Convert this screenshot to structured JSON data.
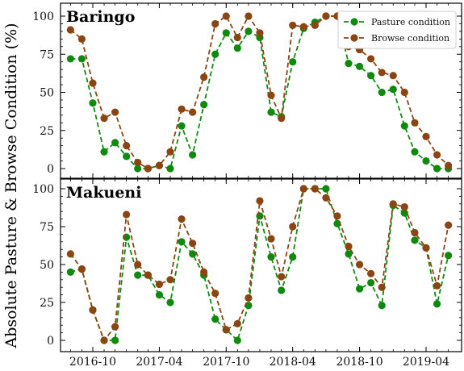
{
  "colors": {
    "pasture": "#0f8a0f",
    "browse": "#8b4513"
  },
  "chart_data": {
    "type": "line",
    "ylabel": "Absolute Pasture & Browse Condition (%)",
    "x_ticks": [
      "2016-10",
      "2017-04",
      "2017-10",
      "2018-04",
      "2018-10",
      "2019-04"
    ],
    "ylim": [
      0,
      100
    ],
    "y_ticks": [
      "0",
      "25",
      "50",
      "75",
      "100"
    ],
    "legend": {
      "placement": "top-right",
      "entries": [
        "Pasture condition",
        "Browse condition"
      ]
    },
    "panels": [
      {
        "title": "Baringo",
        "x": [
          "2016-08-01",
          "2016-08-16",
          "2016-09-01",
          "2016-09-16",
          "2016-10-01",
          "2016-10-16",
          "2016-11-01",
          "2016-11-16",
          "2016-12-01",
          "2016-12-16",
          "2017-01-01",
          "2017-01-16",
          "2017-02-01",
          "2017-02-16",
          "2017-03-01",
          "2017-03-16",
          "2017-04-01",
          "2017-04-16",
          "2017-05-01",
          "2017-05-16",
          "2017-06-01",
          "2017-06-16",
          "2017-07-01",
          "2017-07-16",
          "2017-08-01",
          "2017-08-16",
          "2017-09-01",
          "2017-09-16",
          "2017-10-01",
          "2017-10-16",
          "2017-11-01",
          "2017-11-16",
          "2017-12-01",
          "2017-12-16",
          "2018-01-01",
          "2018-01-16",
          "2018-02-01",
          "2018-02-16",
          "2018-03-01",
          "2018-03-16",
          "2018-04-01",
          "2018-04-16",
          "2018-05-01",
          "2018-05-16",
          "2018-06-01",
          "2018-06-16",
          "2018-07-01",
          "2018-07-16",
          "2018-08-01",
          "2018-08-16",
          "2018-09-01",
          "2018-09-16",
          "2018-10-01",
          "2018-10-16",
          "2018-11-01",
          "2018-11-16",
          "2018-12-01",
          "2018-12-16",
          "2019-01-01",
          "2019-01-16",
          "2019-02-01",
          "2019-02-16",
          "2019-03-01",
          "2019-03-16",
          "2019-04-01",
          "2019-04-16",
          "2019-05-01",
          "2019-05-16",
          "2019-06-01"
        ],
        "x_points": [
          "2016-08-01",
          "2016-09-01",
          "2016-10-01",
          "2016-11-01",
          "2016-12-01",
          "2017-01-01",
          "2017-02-01",
          "2017-03-01",
          "2017-04-01",
          "2017-05-01",
          "2017-06-01",
          "2017-07-01",
          "2017-08-01",
          "2017-09-01",
          "2017-10-01",
          "2017-11-01",
          "2017-12-01",
          "2018-01-01",
          "2018-02-01",
          "2018-03-01",
          "2018-04-01",
          "2018-05-01",
          "2018-06-01",
          "2018-07-01",
          "2018-08-01",
          "2018-09-01",
          "2018-10-01",
          "2018-11-01",
          "2018-12-01",
          "2019-01-01",
          "2019-02-01",
          "2019-03-01",
          "2019-04-01",
          "2019-05-01",
          "2019-06-01"
        ],
        "series": [
          {
            "name": "Pasture condition",
            "values": [
              72,
              72,
              43,
              11,
              17,
              8,
              0,
              0,
              2,
              0,
              28,
              9,
              42,
              75,
              89,
              79,
              90,
              86,
              37,
              34,
              70,
              92,
              96,
              100,
              100,
              69,
              67,
              61,
              50,
              52,
              28,
              11,
              5,
              0,
              0
            ]
          },
          {
            "name": "Browse condition",
            "values": [
              91,
              85,
              56,
              33,
              37,
              15,
              4,
              0,
              2,
              11,
              39,
              37,
              60,
              95,
              100,
              86,
              100,
              89,
              48,
              33,
              94,
              93,
              94,
              100,
              100,
              80,
              78,
              72,
              63,
              61,
              50,
              30,
              21,
              9,
              2
            ]
          }
        ]
      },
      {
        "title": "Makueni",
        "x_points": [
          "2016-08-01",
          "2016-09-01",
          "2016-10-01",
          "2016-11-01",
          "2016-12-01",
          "2017-01-01",
          "2017-02-01",
          "2017-03-01",
          "2017-04-01",
          "2017-05-01",
          "2017-06-01",
          "2017-07-01",
          "2017-08-01",
          "2017-09-01",
          "2017-10-01",
          "2017-11-01",
          "2017-12-01",
          "2018-01-01",
          "2018-02-01",
          "2018-03-01",
          "2018-04-01",
          "2018-05-01",
          "2018-06-01",
          "2018-07-01",
          "2018-08-01",
          "2018-09-01",
          "2018-10-01",
          "2018-11-01",
          "2018-12-01",
          "2019-01-01",
          "2019-02-01",
          "2019-03-01",
          "2019-04-01",
          "2019-05-01",
          "2019-06-01"
        ],
        "series": [
          {
            "name": "Pasture condition",
            "values": [
              45,
              47,
              20,
              0,
              0,
              68,
              43,
              43,
              30,
              25,
              65,
              57,
              43,
              14,
              7,
              0,
              23,
              82,
              55,
              33,
              55,
              100,
              100,
              100,
              77,
              57,
              34,
              38,
              23,
              89,
              84,
              66,
              61,
              24,
              56
            ]
          },
          {
            "name": "Browse condition",
            "values": [
              57,
              47,
              20,
              0,
              9,
              83,
              50,
              43,
              37,
              40,
              80,
              64,
              45,
              31,
              7,
              11,
              28,
              92,
              67,
              42,
              75,
              100,
              100,
              94,
              82,
              62,
              50,
              44,
              35,
              90,
              88,
              71,
              61,
              36,
              76
            ]
          }
        ]
      }
    ]
  }
}
